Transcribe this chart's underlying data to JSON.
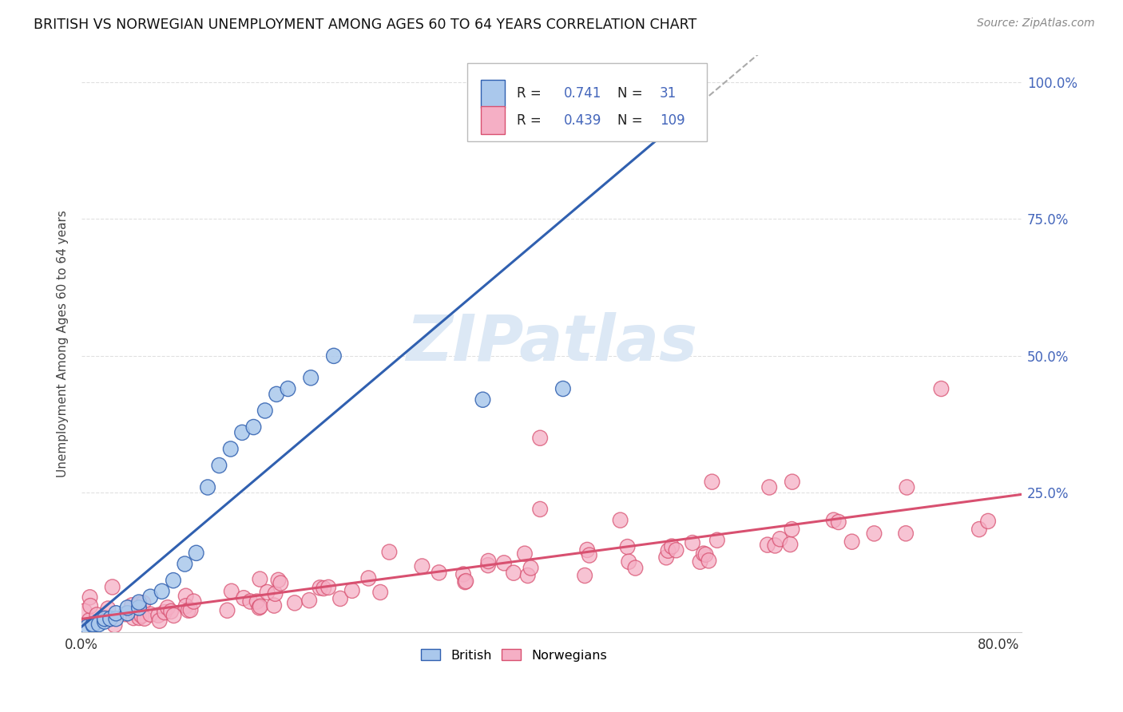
{
  "title": "BRITISH VS NORWEGIAN UNEMPLOYMENT AMONG AGES 60 TO 64 YEARS CORRELATION CHART",
  "source": "Source: ZipAtlas.com",
  "ylabel": "Unemployment Among Ages 60 to 64 years",
  "xlim": [
    0.0,
    0.82
  ],
  "ylim": [
    -0.005,
    1.05
  ],
  "british_R": 0.741,
  "british_N": 31,
  "norwegian_R": 0.439,
  "norwegian_N": 109,
  "british_color": "#aac8ec",
  "norwegian_color": "#f5afc5",
  "british_line_color": "#3060b0",
  "norwegian_line_color": "#d85070",
  "background_color": "#ffffff",
  "watermark_color": "#dce8f5",
  "grid_color": "#cccccc",
  "tick_color": "#4466bb",
  "title_color": "#111111",
  "source_color": "#888888",
  "ylabel_color": "#444444"
}
